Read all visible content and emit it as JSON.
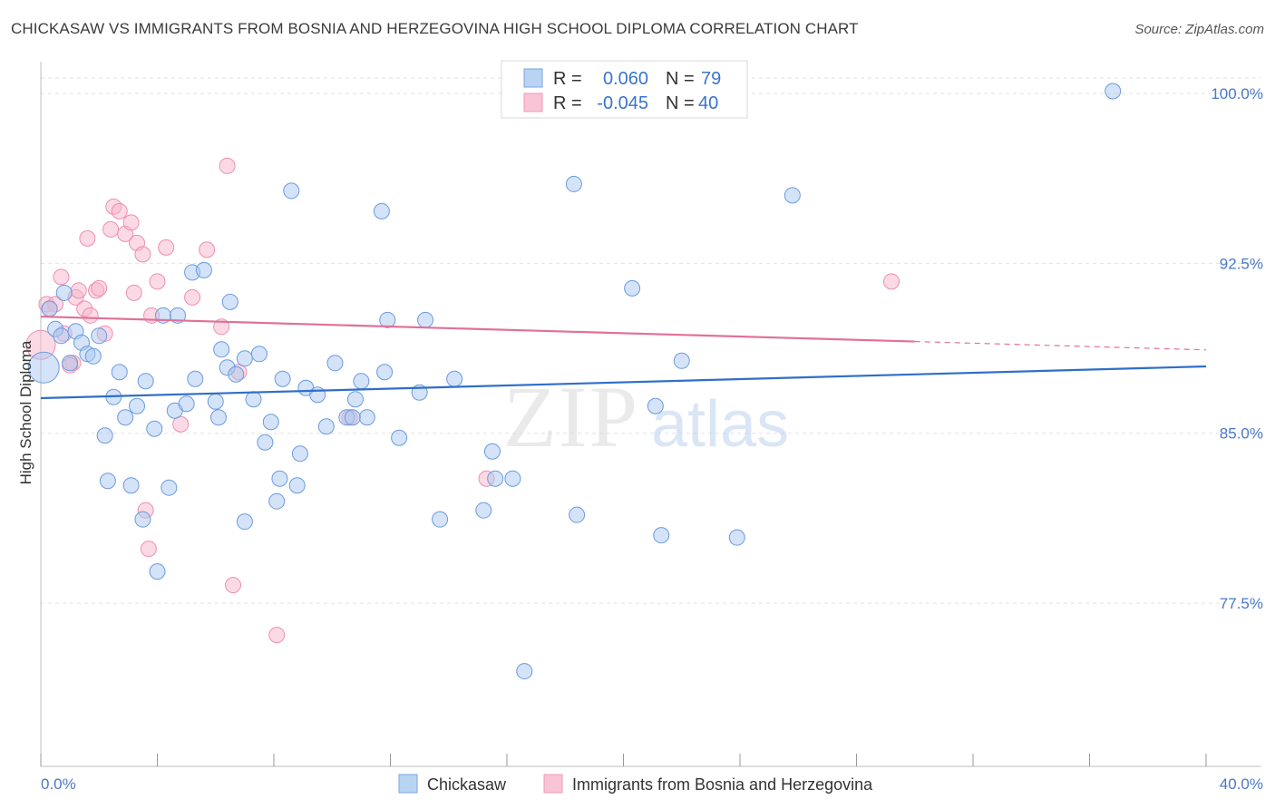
{
  "title": "CHICKASAW VS IMMIGRANTS FROM BOSNIA AND HERZEGOVINA HIGH SCHOOL DIPLOMA CORRELATION CHART",
  "source": "Source: ZipAtlas.com",
  "watermark": {
    "zip": "ZIP",
    "atlas": "atlas"
  },
  "legend": {
    "r_label": "R =",
    "n_label": "N =",
    "series": [
      {
        "r": "0.060",
        "n": "79"
      },
      {
        "r": "-0.045",
        "n": "40"
      }
    ]
  },
  "colors": {
    "blue_fill": "#a9c8f0",
    "blue_stroke": "#6b9be0",
    "blue_line": "#2f6fc9",
    "pink_fill": "#f7b6cb",
    "pink_stroke": "#ee8fae",
    "pink_line": "#e0709a",
    "tick": "#4a78c8",
    "grid": "#e2e2e2"
  },
  "chart_data": {
    "type": "scatter",
    "title": "CHICKASAW VS IMMIGRANTS FROM BOSNIA AND HERZEGOVINA HIGH SCHOOL DIPLOMA CORRELATION CHART",
    "xlabel": "",
    "ylabel": "High School Diploma",
    "xlim": [
      0,
      40
    ],
    "ylim": [
      70.3,
      101.4
    ],
    "x_tick_labels": [
      {
        "value": 0,
        "label": "0.0%"
      },
      {
        "value": 40,
        "label": "40.0%"
      }
    ],
    "x_minor_ticks": [
      0,
      4,
      8,
      12,
      16,
      20,
      24,
      28,
      32,
      36,
      40
    ],
    "y_ticks": [
      {
        "value": 77.5,
        "label": "77.5%"
      },
      {
        "value": 85.0,
        "label": "85.0%"
      },
      {
        "value": 92.5,
        "label": "92.5%"
      },
      {
        "value": 100.0,
        "label": "100.0%"
      }
    ],
    "grid": true,
    "series": [
      {
        "name": "Chickasaw",
        "color": "blue",
        "trend": {
          "x": [
            0,
            40
          ],
          "y": [
            86.55,
            87.95
          ]
        },
        "points": [
          [
            0.1,
            87.9
          ],
          [
            0.3,
            90.5
          ],
          [
            0.5,
            89.6
          ],
          [
            0.7,
            89.3
          ],
          [
            0.8,
            91.2
          ],
          [
            1.0,
            88.1
          ],
          [
            1.2,
            89.5
          ],
          [
            1.4,
            89.0
          ],
          [
            1.6,
            88.5
          ],
          [
            1.8,
            88.4
          ],
          [
            2.0,
            89.3
          ],
          [
            2.2,
            84.9
          ],
          [
            2.3,
            82.9
          ],
          [
            2.5,
            86.6
          ],
          [
            2.7,
            87.7
          ],
          [
            2.9,
            85.7
          ],
          [
            3.1,
            82.7
          ],
          [
            3.3,
            86.2
          ],
          [
            3.5,
            81.2
          ],
          [
            3.6,
            87.3
          ],
          [
            3.9,
            85.2
          ],
          [
            4.0,
            78.9
          ],
          [
            4.2,
            90.2
          ],
          [
            4.4,
            82.6
          ],
          [
            4.6,
            86.0
          ],
          [
            4.7,
            90.2
          ],
          [
            5.0,
            86.3
          ],
          [
            5.2,
            92.1
          ],
          [
            5.3,
            87.4
          ],
          [
            5.6,
            92.2
          ],
          [
            6.0,
            86.4
          ],
          [
            6.1,
            85.7
          ],
          [
            6.2,
            88.7
          ],
          [
            6.4,
            87.9
          ],
          [
            6.5,
            90.8
          ],
          [
            6.7,
            87.6
          ],
          [
            7.0,
            88.3
          ],
          [
            7.0,
            81.1
          ],
          [
            7.3,
            86.5
          ],
          [
            7.5,
            88.5
          ],
          [
            7.7,
            84.6
          ],
          [
            7.9,
            85.5
          ],
          [
            8.1,
            82.0
          ],
          [
            8.2,
            83.0
          ],
          [
            8.3,
            87.4
          ],
          [
            8.6,
            95.7
          ],
          [
            8.8,
            82.7
          ],
          [
            8.9,
            84.1
          ],
          [
            9.1,
            87.0
          ],
          [
            9.5,
            86.7
          ],
          [
            9.8,
            85.3
          ],
          [
            10.1,
            88.1
          ],
          [
            10.5,
            85.7
          ],
          [
            10.8,
            86.5
          ],
          [
            11.0,
            87.3
          ],
          [
            11.2,
            85.7
          ],
          [
            11.7,
            94.8
          ],
          [
            11.8,
            87.7
          ],
          [
            11.9,
            90.0
          ],
          [
            12.3,
            84.8
          ],
          [
            13.0,
            86.8
          ],
          [
            13.2,
            90.0
          ],
          [
            13.7,
            81.2
          ],
          [
            14.2,
            87.4
          ],
          [
            15.2,
            81.6
          ],
          [
            15.5,
            84.2
          ],
          [
            15.6,
            83.0
          ],
          [
            16.2,
            83.0
          ],
          [
            18.3,
            96.0
          ],
          [
            18.4,
            81.4
          ],
          [
            20.3,
            91.4
          ],
          [
            21.1,
            86.2
          ],
          [
            21.3,
            80.5
          ],
          [
            22.0,
            88.2
          ],
          [
            23.9,
            80.4
          ],
          [
            25.8,
            95.5
          ],
          [
            36.8,
            100.1
          ],
          [
            16.6,
            74.5
          ],
          [
            10.7,
            85.7
          ]
        ]
      },
      {
        "name": "Immigrants from Bosnia and Herzegovina",
        "color": "pink",
        "trend": {
          "x": [
            0,
            30
          ],
          "y": [
            90.15,
            89.05
          ]
        },
        "trend_dashed_to": {
          "x": 40,
          "y": 88.68
        },
        "points": [
          [
            0.0,
            88.9
          ],
          [
            0.2,
            90.7
          ],
          [
            0.5,
            90.7
          ],
          [
            0.7,
            91.9
          ],
          [
            0.8,
            89.4
          ],
          [
            1.1,
            88.1
          ],
          [
            1.2,
            91.0
          ],
          [
            1.3,
            91.3
          ],
          [
            1.5,
            90.5
          ],
          [
            1.6,
            93.6
          ],
          [
            1.7,
            90.2
          ],
          [
            1.9,
            91.3
          ],
          [
            2.0,
            91.4
          ],
          [
            2.2,
            89.4
          ],
          [
            2.4,
            94.0
          ],
          [
            2.5,
            95.0
          ],
          [
            2.7,
            94.8
          ],
          [
            2.9,
            93.8
          ],
          [
            3.1,
            94.3
          ],
          [
            3.2,
            91.2
          ],
          [
            3.3,
            93.4
          ],
          [
            3.5,
            92.9
          ],
          [
            3.6,
            81.6
          ],
          [
            3.7,
            79.9
          ],
          [
            3.8,
            90.2
          ],
          [
            4.0,
            91.7
          ],
          [
            4.3,
            93.2
          ],
          [
            4.8,
            85.4
          ],
          [
            5.2,
            91.0
          ],
          [
            5.7,
            93.1
          ],
          [
            6.2,
            89.7
          ],
          [
            6.4,
            96.8
          ],
          [
            6.6,
            78.3
          ],
          [
            6.8,
            87.7
          ],
          [
            8.1,
            76.1
          ],
          [
            10.6,
            85.7
          ],
          [
            15.3,
            83.0
          ],
          [
            29.2,
            91.7
          ],
          [
            0.3,
            90.5
          ],
          [
            1.0,
            88.0
          ]
        ]
      }
    ],
    "legend_entries": [
      "Chickasaw",
      "Immigrants from Bosnia and Herzegovina"
    ]
  }
}
